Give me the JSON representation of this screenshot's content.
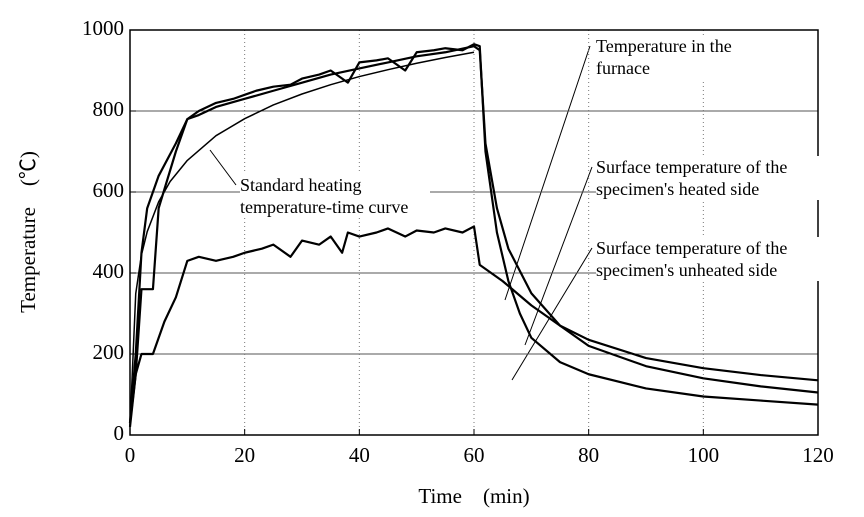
{
  "chart_data": {
    "type": "line",
    "xlabel": "Time　(min)",
    "ylabel": "Temperature　(℃)",
    "xlim": [
      0,
      120
    ],
    "ylim": [
      0,
      1000
    ],
    "xticks": [
      0,
      20,
      40,
      60,
      80,
      100,
      120
    ],
    "yticks": [
      0,
      200,
      400,
      600,
      800,
      1000
    ],
    "grid": true,
    "series": [
      {
        "name": "Temperature in the furnace",
        "color": "#000000",
        "x": [
          0,
          1,
          2,
          3,
          5,
          8,
          10,
          12,
          15,
          18,
          20,
          22,
          25,
          28,
          30,
          33,
          35,
          38,
          40,
          43,
          45,
          48,
          50,
          53,
          55,
          58,
          60,
          61,
          62,
          64,
          66,
          68,
          70,
          75,
          80,
          90,
          100,
          110,
          120
        ],
        "values": [
          30,
          200,
          450,
          560,
          640,
          720,
          780,
          800,
          820,
          830,
          840,
          850,
          860,
          865,
          880,
          890,
          900,
          870,
          920,
          925,
          930,
          900,
          945,
          950,
          955,
          950,
          965,
          960,
          700,
          500,
          380,
          300,
          240,
          180,
          150,
          115,
          95,
          85,
          75
        ]
      },
      {
        "name": "Surface temperature of the specimen's heated side",
        "color": "#000000",
        "x": [
          0,
          1,
          2,
          3,
          4,
          5,
          8,
          10,
          12,
          15,
          20,
          25,
          30,
          35,
          40,
          45,
          50,
          55,
          60,
          61,
          62,
          64,
          66,
          70,
          75,
          80,
          90,
          100,
          110,
          120
        ],
        "values": [
          30,
          150,
          360,
          360,
          360,
          560,
          700,
          780,
          790,
          810,
          830,
          850,
          870,
          890,
          905,
          920,
          935,
          945,
          960,
          950,
          720,
          560,
          460,
          350,
          270,
          220,
          170,
          140,
          120,
          105
        ]
      },
      {
        "name": "Surface temperature of the specimen's unheated side",
        "color": "#000000",
        "x": [
          0,
          1,
          2,
          4,
          6,
          8,
          10,
          12,
          15,
          18,
          20,
          23,
          25,
          28,
          30,
          33,
          35,
          37,
          38,
          40,
          43,
          45,
          48,
          50,
          53,
          55,
          58,
          60,
          61,
          63,
          65,
          70,
          75,
          80,
          90,
          100,
          110,
          120
        ],
        "values": [
          20,
          150,
          200,
          200,
          280,
          340,
          430,
          440,
          430,
          440,
          450,
          460,
          470,
          440,
          480,
          470,
          490,
          450,
          500,
          490,
          500,
          510,
          490,
          505,
          500,
          510,
          500,
          515,
          420,
          400,
          380,
          320,
          270,
          235,
          190,
          165,
          148,
          135
        ]
      },
      {
        "name": "Standard heating temperature-time curve",
        "color": "#000000",
        "x": [
          0,
          1,
          2,
          3,
          5,
          7,
          10,
          15,
          20,
          25,
          30,
          35,
          40,
          45,
          50,
          55,
          60
        ],
        "values": [
          20,
          349,
          445,
          502,
          576,
          626,
          678,
          739,
          781,
          815,
          842,
          865,
          885,
          902,
          918,
          932,
          945
        ]
      }
    ]
  }
}
